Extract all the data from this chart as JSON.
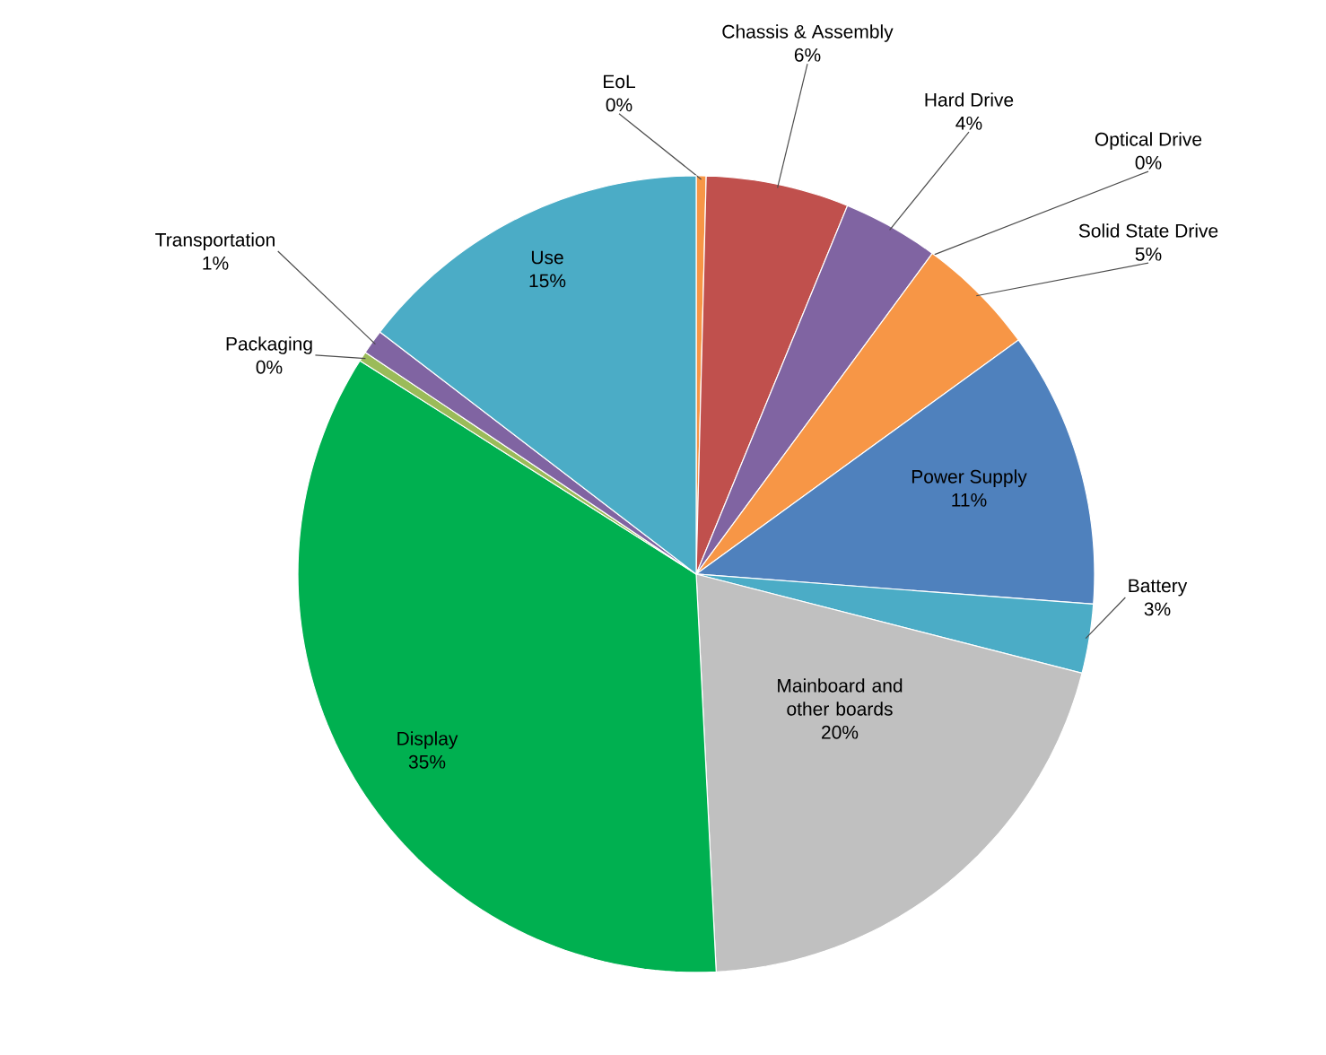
{
  "chart_data": {
    "type": "pie",
    "categories": [
      "EoL",
      "Chassis & Assembly",
      "Hard Drive",
      "Optical Drive",
      "Solid State Drive",
      "Power Supply",
      "Battery",
      "Mainboard and other boards",
      "Display",
      "Packaging",
      "Transportation",
      "Use"
    ],
    "values": [
      0.4,
      5.8,
      3.9,
      0,
      4.9,
      11.2,
      2.8,
      20.2,
      34.8,
      0.4,
      1.0,
      14.6
    ],
    "value_labels": [
      "0%",
      "6%",
      "4%",
      "0%",
      "5%",
      "11%",
      "3%",
      "20%",
      "35%",
      "0%",
      "1%",
      "15%"
    ],
    "colors": [
      "#f79646",
      "#c0504d",
      "#8064a2",
      "#9bbb59",
      "#f79646",
      "#4f81bd",
      "#4bacc6",
      "#c0c0c0",
      "#00b050",
      "#9bbb59",
      "#8064a2",
      "#4bacc6"
    ]
  }
}
